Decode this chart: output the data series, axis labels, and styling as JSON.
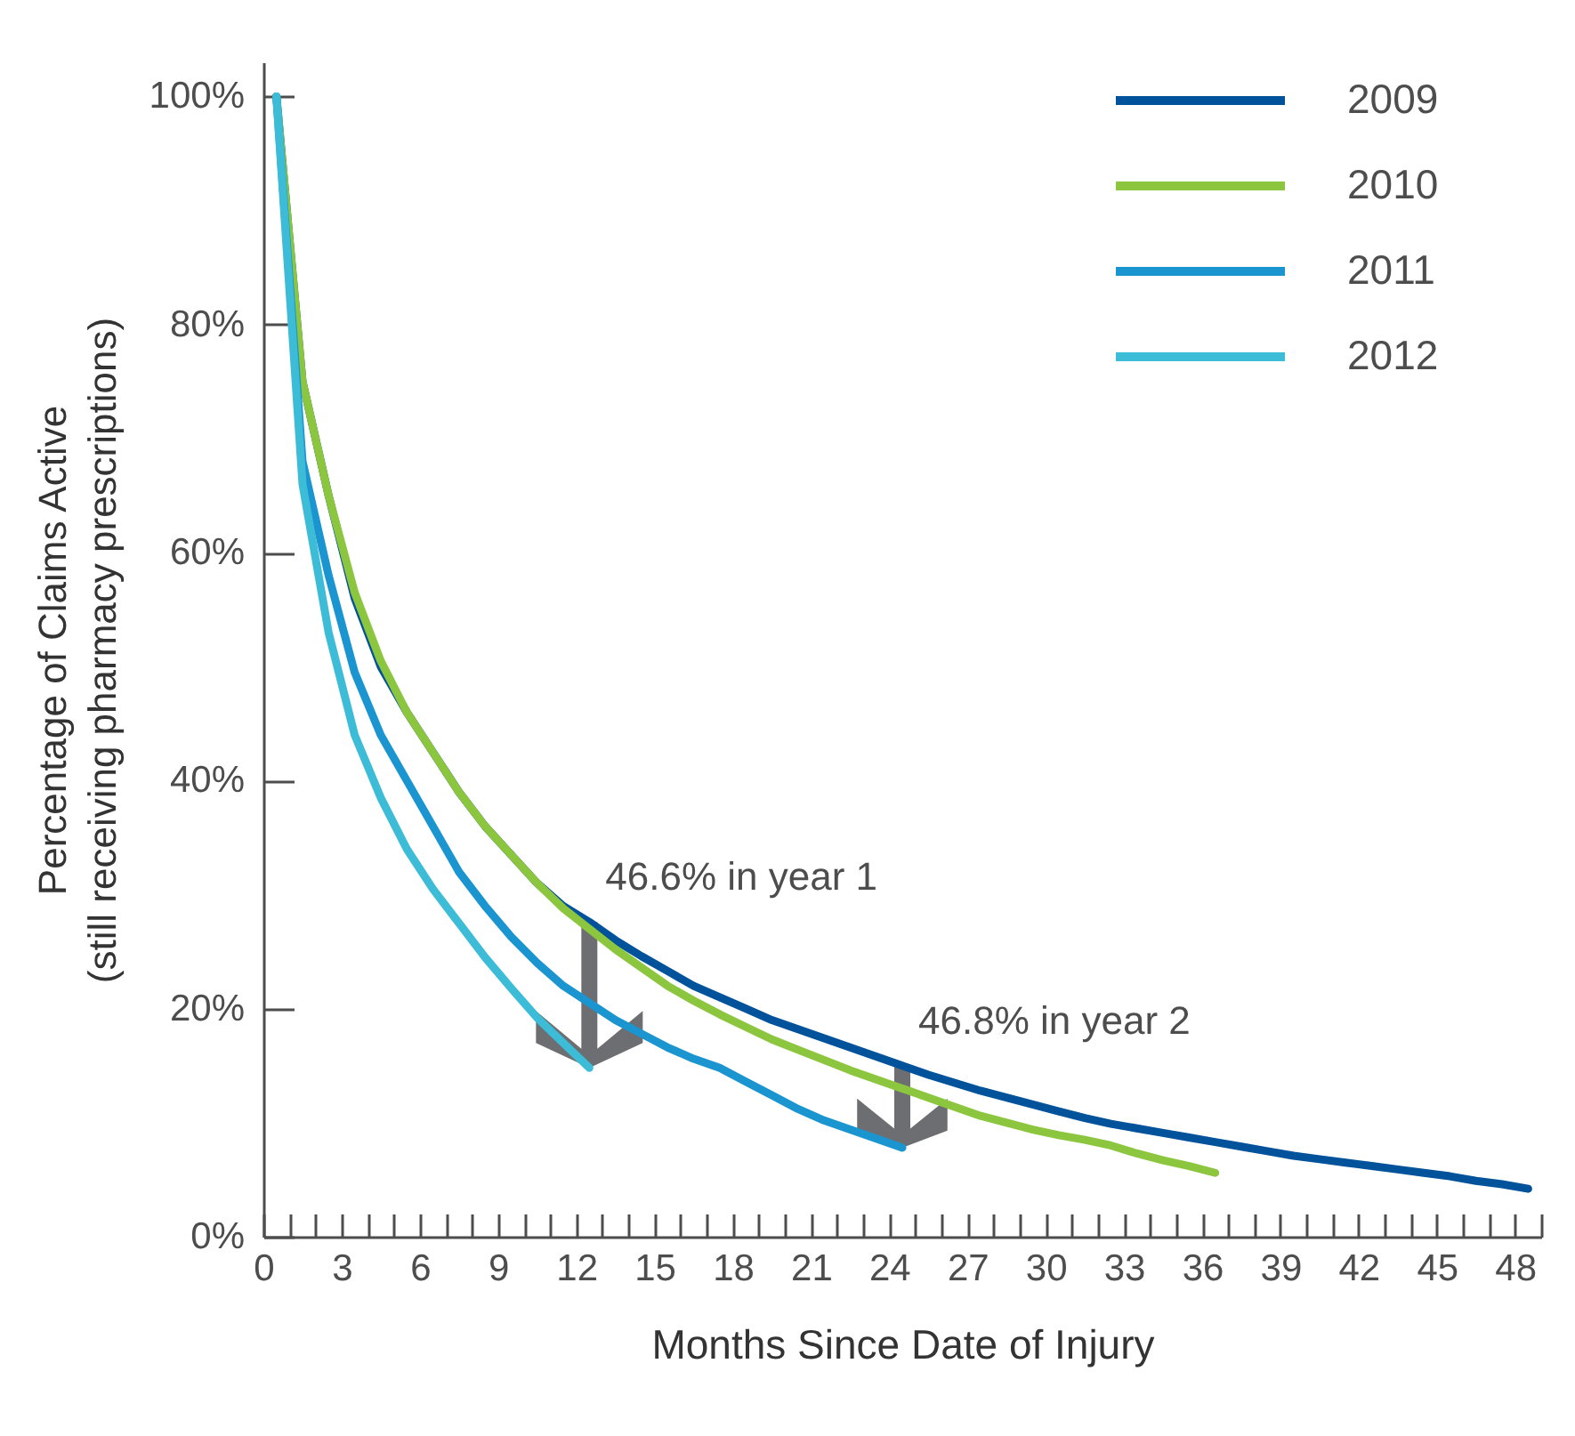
{
  "chart_data": {
    "type": "line",
    "xlabel": "Months Since Date of Injury",
    "ylabel": "Percentage of Claims Active\n(still receiving pharmacy prescriptions)",
    "xlim": [
      0,
      49
    ],
    "ylim": [
      0,
      103
    ],
    "xticks": [
      0,
      {
        "value": 1,
        "label": null
      },
      {
        "value": 2,
        "label": null
      },
      3,
      {
        "value": 4,
        "label": null
      },
      {
        "value": 5,
        "label": null
      },
      6,
      {
        "value": 7,
        "label": null
      },
      {
        "value": 8,
        "label": null
      },
      9,
      {
        "value": 10,
        "label": null
      },
      {
        "value": 11,
        "label": null
      },
      12,
      {
        "value": 13,
        "label": null
      },
      {
        "value": 14,
        "label": null
      },
      15,
      {
        "value": 16,
        "label": null
      },
      {
        "value": 17,
        "label": null
      },
      18,
      {
        "value": 19,
        "label": null
      },
      {
        "value": 20,
        "label": null
      },
      21,
      {
        "value": 22,
        "label": null
      },
      {
        "value": 23,
        "label": null
      },
      24,
      {
        "value": 25,
        "label": null
      },
      {
        "value": 26,
        "label": null
      },
      27,
      {
        "value": 28,
        "label": null
      },
      {
        "value": 29,
        "label": null
      },
      30,
      {
        "value": 31,
        "label": null
      },
      {
        "value": 32,
        "label": null
      },
      33,
      {
        "value": 34,
        "label": null
      },
      {
        "value": 35,
        "label": null
      },
      36,
      {
        "value": 37,
        "label": null
      },
      {
        "value": 38,
        "label": null
      },
      39,
      {
        "value": 40,
        "label": null
      },
      {
        "value": 41,
        "label": null
      },
      42,
      {
        "value": 43,
        "label": null
      },
      {
        "value": 44,
        "label": null
      },
      45,
      {
        "value": 46,
        "label": null
      },
      {
        "value": 47,
        "label": null
      },
      48,
      {
        "value": 49,
        "label": null
      }
    ],
    "yticks": [
      {
        "value": 0,
        "label": "0%"
      },
      {
        "value": 20,
        "label": "20%"
      },
      {
        "value": 40,
        "label": "40%"
      },
      {
        "value": 60,
        "label": "60%"
      },
      {
        "value": 80,
        "label": "80%"
      },
      {
        "value": 100,
        "label": "100%"
      }
    ],
    "grid": false,
    "legend": "top right",
    "marker": "none",
    "line_style": "solid",
    "series": [
      {
        "name": "2009",
        "color": "#00529b",
        "x": [
          0.5,
          1.5,
          2.5,
          3.5,
          4.5,
          5.5,
          6.5,
          7.5,
          8.5,
          9.5,
          10.5,
          11.5,
          12.5,
          13.5,
          14.5,
          15.5,
          16.5,
          17.5,
          18.5,
          19.5,
          20.5,
          21.5,
          22.5,
          23.5,
          24.5,
          25.5,
          26.5,
          27.5,
          28.5,
          29.5,
          30.5,
          31.5,
          32.5,
          33.5,
          34.5,
          35.5,
          36.5,
          37.5,
          38.5,
          39.5,
          40.5,
          41.5,
          42.5,
          43.5,
          44.5,
          45.5,
          46.5,
          47.5,
          48.5
        ],
        "values": [
          100,
          75,
          65,
          56,
          50,
          46,
          42.5,
          39,
          36,
          33.5,
          31,
          29,
          27.6,
          26,
          24.6,
          23.3,
          22,
          21,
          20,
          19,
          18.2,
          17.4,
          16.6,
          15.8,
          15,
          14.2,
          13.5,
          12.8,
          12.2,
          11.6,
          11,
          10.4,
          9.9,
          9.5,
          9.1,
          8.7,
          8.3,
          7.9,
          7.5,
          7.1,
          6.8,
          6.5,
          6.2,
          5.9,
          5.6,
          5.3,
          4.9,
          4.6,
          4.2
        ]
      },
      {
        "name": "2010",
        "color": "#8cc63f",
        "x": [
          0.5,
          1.5,
          2.5,
          3.5,
          4.5,
          5.5,
          6.5,
          7.5,
          8.5,
          9.5,
          10.5,
          11.5,
          12.5,
          13.5,
          14.5,
          15.5,
          16.5,
          17.5,
          18.5,
          19.5,
          20.5,
          21.5,
          22.5,
          23.5,
          24.5,
          25.5,
          26.5,
          27.5,
          28.5,
          29.5,
          30.5,
          31.5,
          32.5,
          33.5,
          34.5,
          35.5,
          36.5
        ],
        "values": [
          100,
          75,
          65,
          56.5,
          50.5,
          46,
          42.5,
          39,
          36,
          33.5,
          31,
          28.8,
          27,
          25.2,
          23.6,
          22,
          20.7,
          19.5,
          18.4,
          17.3,
          16.4,
          15.5,
          14.6,
          13.8,
          13,
          12.2,
          11.4,
          10.6,
          10,
          9.4,
          8.9,
          8.5,
          8,
          7.3,
          6.7,
          6.2,
          5.6
        ]
      },
      {
        "name": "2011",
        "color": "#1b95cf",
        "x": [
          0.5,
          1.5,
          2.5,
          3.5,
          4.5,
          5.5,
          6.5,
          7.5,
          8.5,
          9.5,
          10.5,
          11.5,
          12.5,
          13.5,
          14.5,
          15.5,
          16.5,
          17.5,
          18.5,
          19.5,
          20.5,
          21.5,
          22.5,
          23.5,
          24.5
        ],
        "values": [
          100,
          68,
          58,
          49.5,
          44,
          40,
          36,
          32,
          29,
          26.3,
          24,
          22,
          20.5,
          19,
          17.8,
          16.6,
          15.6,
          14.8,
          13.6,
          12.4,
          11.2,
          10.2,
          9.4,
          8.6,
          7.8
        ]
      },
      {
        "name": "2012",
        "color": "#3dbcd8",
        "x": [
          0.5,
          1.5,
          2.5,
          3.5,
          4.5,
          5.5,
          6.5,
          7.5,
          8.5,
          9.5,
          10.5,
          11.5,
          12.5
        ],
        "values": [
          100,
          66,
          53,
          44,
          38.5,
          34,
          30.5,
          27.5,
          24.5,
          21.8,
          19.2,
          17,
          14.8
        ]
      }
    ],
    "annotations": [
      {
        "text": "46.6% in year 1",
        "x": 12.5,
        "y": 27.6
      },
      {
        "text": "46.8% in year 2",
        "x": 24.5,
        "y": 15
      }
    ]
  }
}
